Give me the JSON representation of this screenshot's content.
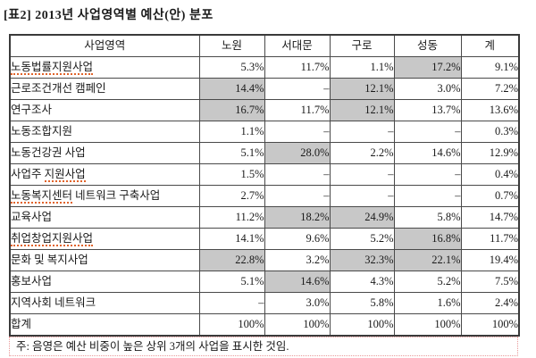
{
  "title": "[표2] 2013년 사업영역별 예산(안) 분포",
  "note": "주: 음영은 예산 비중이 높은 상위 3개의 사업을 표시한 것임.",
  "colors": {
    "shade": "#c8c8c8",
    "grid_line": "#4a4a4a",
    "outer_border": "#3a3a3a",
    "spellcheck_underline": "#e0632a",
    "note_border": "#e89898",
    "text": "#1a1a1a"
  },
  "table": {
    "columns": [
      "사업영역",
      "노원",
      "서대문",
      "구로",
      "성동",
      "계"
    ],
    "rows": [
      {
        "label": [
          {
            "text": "노동법률지원사업",
            "spellcheck": true
          }
        ],
        "values": [
          "5.3%",
          "11.7%",
          "1.1%",
          "17.2%",
          "9.1%"
        ],
        "shaded": [
          false,
          false,
          false,
          true,
          false
        ]
      },
      {
        "label": [
          {
            "text": "근로조건개선 캠페인",
            "spellcheck": false
          }
        ],
        "values": [
          "14.4%",
          "–",
          "12.1%",
          "3.0%",
          "7.2%"
        ],
        "shaded": [
          true,
          false,
          true,
          false,
          false
        ]
      },
      {
        "label": [
          {
            "text": "연구조사",
            "spellcheck": false
          }
        ],
        "values": [
          "16.7%",
          "11.7%",
          "12.1%",
          "13.7%",
          "13.6%"
        ],
        "shaded": [
          true,
          false,
          true,
          false,
          false
        ]
      },
      {
        "label": [
          {
            "text": "노동조합지원",
            "spellcheck": false
          }
        ],
        "values": [
          "1.1%",
          "–",
          "–",
          "–",
          "0.3%"
        ],
        "shaded": [
          false,
          false,
          false,
          false,
          false
        ]
      },
      {
        "label": [
          {
            "text": "노동건강권 사업",
            "spellcheck": false
          }
        ],
        "values": [
          "5.1%",
          "28.0%",
          "2.2%",
          "14.6%",
          "12.9%"
        ],
        "shaded": [
          false,
          true,
          false,
          false,
          false
        ]
      },
      {
        "label": [
          {
            "text": "사업주 ",
            "spellcheck": false
          },
          {
            "text": "지원사업",
            "spellcheck": true
          }
        ],
        "values": [
          "1.5%",
          "–",
          "–",
          "–",
          "0.4%"
        ],
        "shaded": [
          false,
          false,
          false,
          false,
          false
        ]
      },
      {
        "label": [
          {
            "text": "노동복지센터",
            "spellcheck": true
          },
          {
            "text": " 네트워크 구축사업",
            "spellcheck": false
          }
        ],
        "values": [
          "2.7%",
          "–",
          "–",
          "–",
          "0.7%"
        ],
        "shaded": [
          false,
          false,
          false,
          false,
          false
        ]
      },
      {
        "label": [
          {
            "text": "교육사업",
            "spellcheck": false
          }
        ],
        "values": [
          "11.2%",
          "18.2%",
          "24.9%",
          "5.8%",
          "14.7%"
        ],
        "shaded": [
          false,
          true,
          true,
          false,
          false
        ]
      },
      {
        "label": [
          {
            "text": "취업창업지원사업",
            "spellcheck": true
          }
        ],
        "values": [
          "14.1%",
          "9.6%",
          "5.2%",
          "16.8%",
          "11.7%"
        ],
        "shaded": [
          false,
          false,
          false,
          true,
          false
        ]
      },
      {
        "label": [
          {
            "text": "문화 및 복지사업",
            "spellcheck": false
          }
        ],
        "values": [
          "22.8%",
          "3.2%",
          "32.3%",
          "22.1%",
          "19.4%"
        ],
        "shaded": [
          true,
          false,
          true,
          true,
          false
        ]
      },
      {
        "label": [
          {
            "text": "홍보사업",
            "spellcheck": false
          }
        ],
        "values": [
          "5.1%",
          "14.6%",
          "4.3%",
          "5.2%",
          "7.5%"
        ],
        "shaded": [
          false,
          true,
          false,
          false,
          false
        ]
      },
      {
        "label": [
          {
            "text": "지역사회 네트워크",
            "spellcheck": false
          }
        ],
        "values": [
          "–",
          "3.0%",
          "5.8%",
          "1.6%",
          "2.4%"
        ],
        "shaded": [
          false,
          false,
          false,
          false,
          false
        ]
      },
      {
        "label": [
          {
            "text": "합계",
            "spellcheck": false
          }
        ],
        "values": [
          "100%",
          "100%",
          "100%",
          "100%",
          "100%"
        ],
        "shaded": [
          false,
          false,
          false,
          false,
          false
        ]
      }
    ]
  }
}
